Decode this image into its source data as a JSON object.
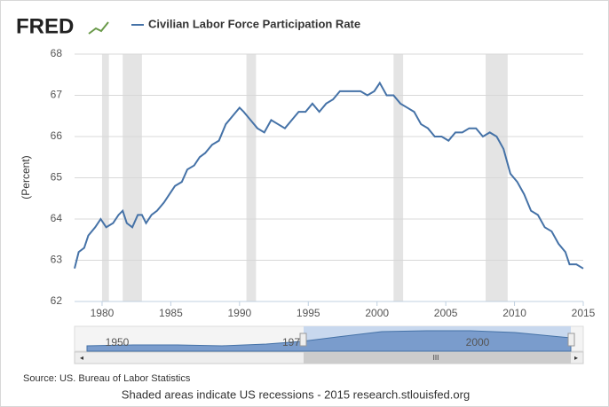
{
  "logo": "FRED",
  "chart_data": {
    "type": "line",
    "legend": "Civilian Labor Force Participation Rate",
    "ylabel": "(Percent)",
    "series": [
      {
        "name": "Civilian Labor Force Participation Rate",
        "color": "#4572a7",
        "x": [
          1978.0,
          1978.3,
          1978.7,
          1979.0,
          1979.5,
          1979.9,
          1980.3,
          1980.8,
          1981.2,
          1981.5,
          1981.8,
          1982.2,
          1982.6,
          1982.9,
          1983.2,
          1983.6,
          1984.0,
          1984.5,
          1984.9,
          1985.3,
          1985.8,
          1986.2,
          1986.7,
          1987.1,
          1987.5,
          1988.0,
          1988.5,
          1989.0,
          1989.5,
          1990.0,
          1990.3,
          1990.8,
          1991.3,
          1991.8,
          1992.3,
          1992.8,
          1993.3,
          1993.8,
          1994.3,
          1994.8,
          1995.3,
          1995.8,
          1996.3,
          1996.8,
          1997.3,
          1997.8,
          1998.3,
          1998.8,
          1999.3,
          1999.8,
          2000.2,
          2000.7,
          2001.2,
          2001.7,
          2002.2,
          2002.7,
          2003.2,
          2003.7,
          2004.2,
          2004.7,
          2005.2,
          2005.7,
          2006.2,
          2006.7,
          2007.2,
          2007.7,
          2008.2,
          2008.7,
          2009.2,
          2009.7,
          2010.2,
          2010.7,
          2011.2,
          2011.7,
          2012.2,
          2012.7,
          2013.2,
          2013.7,
          2014.0,
          2014.5,
          2015.0
        ],
        "values": [
          62.8,
          63.2,
          63.3,
          63.6,
          63.8,
          64.0,
          63.8,
          63.9,
          64.1,
          64.2,
          63.9,
          63.8,
          64.1,
          64.1,
          63.9,
          64.1,
          64.2,
          64.4,
          64.6,
          64.8,
          64.9,
          65.2,
          65.3,
          65.5,
          65.6,
          65.8,
          65.9,
          66.3,
          66.5,
          66.7,
          66.6,
          66.4,
          66.2,
          66.1,
          66.4,
          66.3,
          66.2,
          66.4,
          66.6,
          66.6,
          66.8,
          66.6,
          66.8,
          66.9,
          67.1,
          67.1,
          67.1,
          67.1,
          67.0,
          67.1,
          67.3,
          67.0,
          67.0,
          66.8,
          66.7,
          66.6,
          66.3,
          66.2,
          66.0,
          66.0,
          65.9,
          66.1,
          66.1,
          66.2,
          66.2,
          66.0,
          66.1,
          66.0,
          65.7,
          65.1,
          64.9,
          64.6,
          64.2,
          64.1,
          63.8,
          63.7,
          63.4,
          63.2,
          62.9,
          62.9,
          62.8
        ]
      }
    ],
    "recessions": [
      [
        1980.0,
        1980.5
      ],
      [
        1981.5,
        1982.9
      ],
      [
        1990.5,
        1991.2
      ],
      [
        2001.2,
        2001.9
      ],
      [
        2007.9,
        2009.5
      ]
    ],
    "xlim": [
      1978,
      2015
    ],
    "xticks": [
      1980,
      1985,
      1990,
      1995,
      2000,
      2005,
      2010,
      2015
    ],
    "ylim": [
      62,
      68
    ],
    "yticks": [
      62,
      63,
      64,
      65,
      66,
      67,
      68
    ],
    "grid": true,
    "navigator_labels": [
      "1950",
      "197",
      "2000"
    ],
    "scrollbar_label": "III"
  },
  "source": "Source: US. Bureau of Labor Statistics",
  "footer": "Shaded areas indicate US recessions - 2015 research.stlouisfed.org"
}
